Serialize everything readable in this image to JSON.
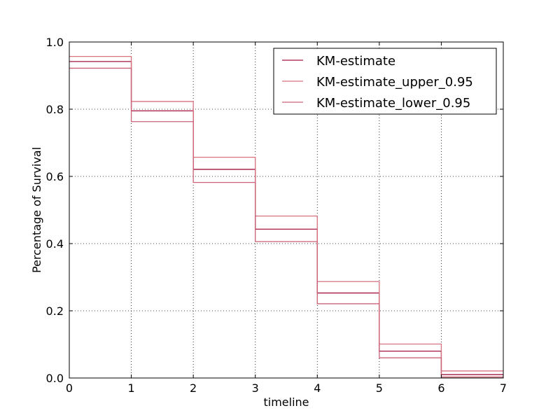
{
  "chart_data": {
    "type": "line",
    "step": "post",
    "xlabel": "timeline",
    "ylabel": "Percentage of Survival",
    "xlim": [
      0,
      7
    ],
    "ylim": [
      0.0,
      1.0
    ],
    "xticks": [
      "0",
      "1",
      "2",
      "3",
      "4",
      "5",
      "6",
      "7"
    ],
    "yticks": [
      "0.0",
      "0.2",
      "0.4",
      "0.6",
      "0.8",
      "1.0"
    ],
    "grid": true,
    "legend_position": "top-right",
    "x": [
      0,
      1,
      2,
      3,
      4,
      5,
      6,
      7
    ],
    "series": [
      {
        "name": "KM-estimate",
        "color": "#a2163f",
        "values": [
          0.942,
          0.795,
          0.621,
          0.443,
          0.253,
          0.08,
          0.01,
          0.01
        ]
      },
      {
        "name": "KM-estimate_upper_0.95",
        "color": "#d8727f",
        "values": [
          0.957,
          0.823,
          0.657,
          0.482,
          0.287,
          0.101,
          0.021,
          0.021
        ]
      },
      {
        "name": "KM-estimate_lower_0.95",
        "color": "#cc6276",
        "values": [
          0.922,
          0.763,
          0.582,
          0.406,
          0.221,
          0.06,
          0.003,
          0.003
        ]
      }
    ]
  }
}
